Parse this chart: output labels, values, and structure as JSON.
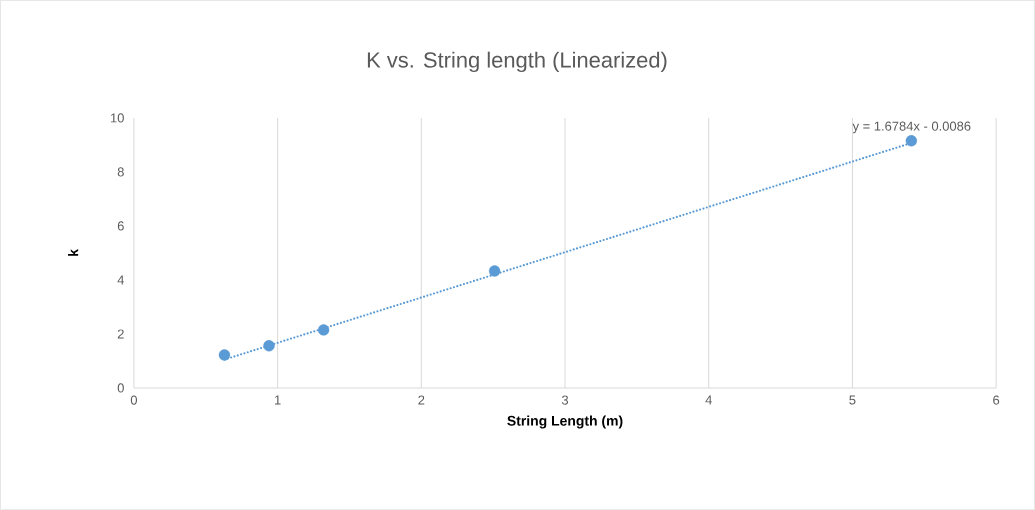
{
  "chart_data": {
    "type": "scatter",
    "title": "K vs. String length (Linearized)",
    "xlabel": "String Length (m)",
    "ylabel": "k",
    "series": [
      {
        "color": "#5b9bd5",
        "marker": "circle",
        "x": [
          0.63,
          0.94,
          1.32,
          2.51,
          5.41
        ],
        "values": [
          1.22,
          1.56,
          2.15,
          4.33,
          9.15
        ]
      },
      {
        "type": "line",
        "color": "#5b9bd5",
        "marker": "none",
        "line_style": "dotted",
        "x": [
          0.63,
          5.41
        ],
        "values": [
          1.05,
          9.07
        ]
      }
    ],
    "annotations": [
      "y = 1.6784x - 0.0086"
    ],
    "xlim": [
      0,
      6
    ],
    "ylim": [
      0,
      10
    ],
    "xticks": [
      0,
      1,
      2,
      3,
      4,
      5,
      6
    ],
    "yticks": [
      0,
      2,
      4,
      6,
      8,
      10
    ],
    "grid": "x"
  }
}
